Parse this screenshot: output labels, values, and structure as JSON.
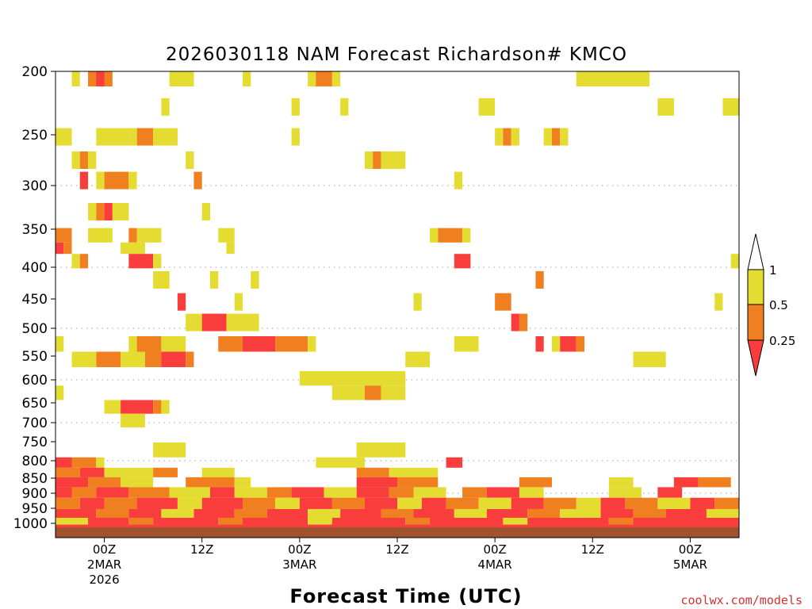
{
  "chart_data": {
    "type": "heatmap",
    "title": "2026030118 NAM Forecast Richardson# KMCO",
    "xlabel": "Forecast Time (UTC)",
    "ylabel": "",
    "credit": "coolwx.com/models",
    "x_unit": "hours since 2026-03-01 18Z",
    "xlim": [
      0,
      84
    ],
    "y_scale": "pressure (hPa), inverted, log-like",
    "ylim": [
      1025,
      200
    ],
    "yticks": [
      200,
      250,
      300,
      350,
      400,
      450,
      500,
      550,
      600,
      650,
      700,
      750,
      800,
      850,
      900,
      950,
      1000
    ],
    "xticks": [
      {
        "hour": 6,
        "lines": [
          "00Z",
          "2MAR",
          "2026"
        ]
      },
      {
        "hour": 18,
        "lines": [
          "12Z"
        ]
      },
      {
        "hour": 30,
        "lines": [
          "00Z",
          "3MAR"
        ]
      },
      {
        "hour": 42,
        "lines": [
          "12Z"
        ]
      },
      {
        "hour": 54,
        "lines": [
          "00Z",
          "4MAR"
        ]
      },
      {
        "hour": 66,
        "lines": [
          "12Z"
        ]
      },
      {
        "hour": 78,
        "lines": [
          "00Z",
          "5MAR"
        ]
      }
    ],
    "dotted_grid_levels": [
      300,
      400,
      500,
      600,
      700,
      800,
      900,
      1000
    ],
    "legend": {
      "placement": "right",
      "labels": [
        "1",
        "0.5",
        "0.25"
      ],
      "bins": [
        {
          "range": "> 1",
          "color": "#ffffff"
        },
        {
          "range": "0.5 - 1",
          "color": "#e5dc32"
        },
        {
          "range": "0.25 - 0.5",
          "color": "#f07f20"
        },
        {
          "range": "< 0.25",
          "color": "#f93c3c"
        }
      ]
    },
    "colors": {
      "yellow": "#e5dc32",
      "orange": "#f07f20",
      "red": "#f93c3c",
      "ground": "#a0522d"
    },
    "cells": [
      [
        2,
        3,
        205,
        "Y"
      ],
      [
        4,
        7,
        205,
        "O"
      ],
      [
        5,
        6,
        205,
        "R"
      ],
      [
        14,
        17,
        205,
        "Y"
      ],
      [
        23,
        24,
        205,
        "Y"
      ],
      [
        31,
        33,
        205,
        "Y"
      ],
      [
        32,
        34,
        205,
        "O"
      ],
      [
        34,
        35,
        205,
        "Y"
      ],
      [
        64,
        73,
        205,
        "Y"
      ],
      [
        13,
        14,
        228,
        "Y"
      ],
      [
        29,
        30,
        228,
        "Y"
      ],
      [
        35,
        36,
        228,
        "Y"
      ],
      [
        52,
        54,
        228,
        "Y"
      ],
      [
        74,
        76,
        228,
        "Y"
      ],
      [
        82,
        84,
        228,
        "Y"
      ],
      [
        0,
        2,
        252,
        "Y"
      ],
      [
        5,
        9,
        252,
        "Y"
      ],
      [
        10,
        12,
        252,
        "O"
      ],
      [
        9,
        10,
        252,
        "Y"
      ],
      [
        12,
        15,
        252,
        "Y"
      ],
      [
        29,
        30,
        252,
        "Y"
      ],
      [
        54,
        55,
        252,
        "Y"
      ],
      [
        55,
        56,
        252,
        "O"
      ],
      [
        56,
        57,
        252,
        "Y"
      ],
      [
        60,
        61,
        252,
        "Y"
      ],
      [
        61,
        62,
        252,
        "O"
      ],
      [
        62,
        63,
        252,
        "Y"
      ],
      [
        2,
        3,
        275,
        "Y"
      ],
      [
        3,
        4,
        275,
        "O"
      ],
      [
        4,
        5,
        275,
        "Y"
      ],
      [
        16,
        17,
        275,
        "Y"
      ],
      [
        38,
        39,
        275,
        "Y"
      ],
      [
        39,
        40,
        275,
        "O"
      ],
      [
        40,
        43,
        275,
        "Y"
      ],
      [
        3,
        4,
        295,
        "R"
      ],
      [
        5,
        6,
        295,
        "Y"
      ],
      [
        6,
        9,
        295,
        "O"
      ],
      [
        9,
        10,
        295,
        "Y"
      ],
      [
        17,
        18,
        295,
        "O"
      ],
      [
        49,
        50,
        295,
        "Y"
      ],
      [
        4,
        5,
        330,
        "Y"
      ],
      [
        5,
        6,
        330,
        "O"
      ],
      [
        6,
        7,
        330,
        "R"
      ],
      [
        7,
        9,
        330,
        "Y"
      ],
      [
        18,
        19,
        330,
        "Y"
      ],
      [
        0,
        2,
        360,
        "O"
      ],
      [
        4,
        7,
        360,
        "Y"
      ],
      [
        9,
        10,
        360,
        "O"
      ],
      [
        10,
        13,
        360,
        "Y"
      ],
      [
        20,
        22,
        360,
        "Y"
      ],
      [
        46,
        47,
        360,
        "Y"
      ],
      [
        47,
        50,
        360,
        "O"
      ],
      [
        50,
        51,
        360,
        "Y"
      ],
      [
        0,
        1,
        375,
        "R"
      ],
      [
        1,
        2,
        375,
        "O"
      ],
      [
        8,
        11,
        375,
        "Y"
      ],
      [
        21,
        22,
        375,
        "Y"
      ],
      [
        2,
        3,
        390,
        "Y"
      ],
      [
        3,
        4,
        390,
        "O"
      ],
      [
        9,
        12,
        390,
        "R"
      ],
      [
        12,
        13,
        390,
        "Y"
      ],
      [
        49,
        51,
        390,
        "R"
      ],
      [
        83,
        84,
        390,
        "Y"
      ],
      [
        12,
        14,
        420,
        "Y"
      ],
      [
        19,
        20,
        420,
        "Y"
      ],
      [
        24,
        25,
        420,
        "Y"
      ],
      [
        59,
        60,
        420,
        "O"
      ],
      [
        15,
        16,
        455,
        "R"
      ],
      [
        22,
        23,
        455,
        "Y"
      ],
      [
        44,
        45,
        455,
        "Y"
      ],
      [
        54,
        56,
        455,
        "O"
      ],
      [
        81,
        82,
        455,
        "Y"
      ],
      [
        16,
        18,
        490,
        "Y"
      ],
      [
        18,
        21,
        490,
        "R"
      ],
      [
        21,
        25,
        490,
        "Y"
      ],
      [
        56,
        57,
        490,
        "R"
      ],
      [
        57,
        58,
        490,
        "O"
      ],
      [
        0,
        1,
        530,
        "Y"
      ],
      [
        9,
        10,
        530,
        "Y"
      ],
      [
        10,
        13,
        530,
        "O"
      ],
      [
        13,
        16,
        530,
        "Y"
      ],
      [
        20,
        23,
        530,
        "O"
      ],
      [
        23,
        27,
        530,
        "R"
      ],
      [
        27,
        31,
        530,
        "O"
      ],
      [
        31,
        32,
        530,
        "Y"
      ],
      [
        49,
        52,
        530,
        "Y"
      ],
      [
        59,
        60,
        530,
        "R"
      ],
      [
        61,
        62,
        530,
        "Y"
      ],
      [
        62,
        64,
        530,
        "R"
      ],
      [
        64,
        65,
        530,
        "O"
      ],
      [
        2,
        5,
        555,
        "Y"
      ],
      [
        5,
        8,
        555,
        "O"
      ],
      [
        8,
        11,
        555,
        "Y"
      ],
      [
        11,
        13,
        555,
        "O"
      ],
      [
        13,
        16,
        555,
        "R"
      ],
      [
        16,
        17,
        555,
        "O"
      ],
      [
        43,
        46,
        555,
        "Y"
      ],
      [
        71,
        75,
        555,
        "Y"
      ],
      [
        30,
        43,
        600,
        "Y"
      ],
      [
        0,
        1,
        625,
        "Y"
      ],
      [
        34,
        38,
        625,
        "Y"
      ],
      [
        38,
        40,
        625,
        "O"
      ],
      [
        40,
        43,
        625,
        "Y"
      ],
      [
        6,
        8,
        665,
        "Y"
      ],
      [
        8,
        12,
        665,
        "R"
      ],
      [
        12,
        13,
        665,
        "O"
      ],
      [
        13,
        14,
        665,
        "Y"
      ],
      [
        8,
        11,
        690,
        "Y"
      ],
      [
        12,
        16,
        775,
        "Y"
      ],
      [
        37,
        43,
        775,
        "Y"
      ],
      [
        0,
        2,
        808,
        "R"
      ],
      [
        2,
        5,
        808,
        "O"
      ],
      [
        5,
        6,
        808,
        "Y"
      ],
      [
        32,
        38,
        808,
        "Y"
      ],
      [
        48,
        50,
        808,
        "R"
      ],
      [
        0,
        3,
        832,
        "O"
      ],
      [
        3,
        6,
        832,
        "R"
      ],
      [
        6,
        12,
        832,
        "Y"
      ],
      [
        12,
        15,
        832,
        "O"
      ],
      [
        18,
        22,
        832,
        "Y"
      ],
      [
        37,
        41,
        832,
        "O"
      ],
      [
        41,
        47,
        832,
        "Y"
      ],
      [
        0,
        4,
        865,
        "R"
      ],
      [
        4,
        8,
        865,
        "O"
      ],
      [
        8,
        12,
        865,
        "Y"
      ],
      [
        16,
        22,
        865,
        "O"
      ],
      [
        22,
        24,
        865,
        "Y"
      ],
      [
        37,
        42,
        865,
        "R"
      ],
      [
        42,
        47,
        865,
        "O"
      ],
      [
        57,
        61,
        865,
        "O"
      ],
      [
        68,
        71,
        865,
        "Y"
      ],
      [
        76,
        79,
        865,
        "R"
      ],
      [
        79,
        83,
        865,
        "O"
      ],
      [
        0,
        2,
        895,
        "R"
      ],
      [
        2,
        5,
        895,
        "O"
      ],
      [
        5,
        9,
        895,
        "R"
      ],
      [
        9,
        14,
        895,
        "O"
      ],
      [
        14,
        19,
        895,
        "Y"
      ],
      [
        19,
        22,
        895,
        "R"
      ],
      [
        22,
        26,
        895,
        "Y"
      ],
      [
        26,
        29,
        895,
        "O"
      ],
      [
        29,
        33,
        895,
        "R"
      ],
      [
        33,
        37,
        895,
        "Y"
      ],
      [
        37,
        41,
        895,
        "R"
      ],
      [
        41,
        44,
        895,
        "O"
      ],
      [
        44,
        48,
        895,
        "Y"
      ],
      [
        50,
        53,
        895,
        "O"
      ],
      [
        53,
        57,
        895,
        "R"
      ],
      [
        57,
        60,
        895,
        "Y"
      ],
      [
        68,
        72,
        895,
        "Y"
      ],
      [
        74,
        77,
        895,
        "R"
      ],
      [
        0,
        3,
        935,
        "O"
      ],
      [
        3,
        6,
        935,
        "R"
      ],
      [
        6,
        10,
        935,
        "O"
      ],
      [
        10,
        15,
        935,
        "R"
      ],
      [
        15,
        18,
        935,
        "Y"
      ],
      [
        18,
        23,
        935,
        "R"
      ],
      [
        23,
        27,
        935,
        "O"
      ],
      [
        27,
        30,
        935,
        "Y"
      ],
      [
        30,
        34,
        935,
        "R"
      ],
      [
        34,
        38,
        935,
        "O"
      ],
      [
        38,
        42,
        935,
        "R"
      ],
      [
        42,
        45,
        935,
        "Y"
      ],
      [
        45,
        48,
        935,
        "R"
      ],
      [
        48,
        52,
        935,
        "O"
      ],
      [
        52,
        56,
        935,
        "Y"
      ],
      [
        56,
        60,
        935,
        "R"
      ],
      [
        60,
        64,
        935,
        "O"
      ],
      [
        64,
        67,
        935,
        "Y"
      ],
      [
        67,
        70,
        935,
        "R"
      ],
      [
        70,
        74,
        935,
        "O"
      ],
      [
        74,
        78,
        935,
        "Y"
      ],
      [
        78,
        81,
        935,
        "R"
      ],
      [
        81,
        84,
        935,
        "O"
      ],
      [
        0,
        5,
        970,
        "R"
      ],
      [
        5,
        9,
        970,
        "O"
      ],
      [
        9,
        13,
        970,
        "R"
      ],
      [
        13,
        17,
        970,
        "Y"
      ],
      [
        17,
        22,
        970,
        "R"
      ],
      [
        22,
        26,
        970,
        "O"
      ],
      [
        26,
        31,
        970,
        "R"
      ],
      [
        31,
        35,
        970,
        "Y"
      ],
      [
        35,
        40,
        970,
        "R"
      ],
      [
        40,
        44,
        970,
        "O"
      ],
      [
        44,
        49,
        970,
        "R"
      ],
      [
        49,
        53,
        970,
        "Y"
      ],
      [
        53,
        58,
        970,
        "R"
      ],
      [
        58,
        62,
        970,
        "O"
      ],
      [
        62,
        67,
        970,
        "Y"
      ],
      [
        67,
        71,
        970,
        "R"
      ],
      [
        71,
        75,
        970,
        "O"
      ],
      [
        75,
        80,
        970,
        "R"
      ],
      [
        80,
        84,
        970,
        "Y"
      ],
      [
        0,
        4,
        993,
        "Y"
      ],
      [
        4,
        9,
        993,
        "R"
      ],
      [
        9,
        12,
        993,
        "O"
      ],
      [
        12,
        20,
        993,
        "R"
      ],
      [
        20,
        23,
        993,
        "O"
      ],
      [
        23,
        31,
        993,
        "R"
      ],
      [
        31,
        34,
        993,
        "Y"
      ],
      [
        34,
        43,
        993,
        "R"
      ],
      [
        43,
        46,
        993,
        "O"
      ],
      [
        46,
        55,
        993,
        "R"
      ],
      [
        55,
        58,
        993,
        "Y"
      ],
      [
        58,
        68,
        993,
        "R"
      ],
      [
        68,
        71,
        993,
        "O"
      ],
      [
        71,
        84,
        993,
        "R"
      ],
      [
        0,
        84,
        1008,
        "R"
      ]
    ]
  }
}
